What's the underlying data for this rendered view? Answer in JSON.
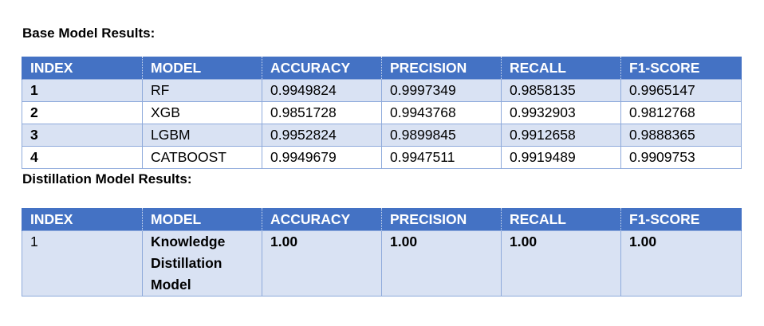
{
  "base": {
    "heading": "Base Model Results:",
    "columns": [
      "INDEX",
      "MODEL",
      "ACCURACY",
      "PRECISION",
      "RECALL",
      "F1-SCORE"
    ],
    "rows": [
      {
        "index": "1",
        "model": "RF",
        "accuracy": "0.9949824",
        "precision": "0.9997349",
        "recall": "0.9858135",
        "f1": "0.9965147"
      },
      {
        "index": "2",
        "model": "XGB",
        "accuracy": "0.9851728",
        "precision": "0.9943768",
        "recall": "0.9932903",
        "f1": "0.9812768"
      },
      {
        "index": "3",
        "model": "LGBM",
        "accuracy": "0.9952824",
        "precision": "0.9899845",
        "recall": "0.9912658",
        "f1": "0.9888365"
      },
      {
        "index": "4",
        "model": "CATBOOST",
        "accuracy": "0.9949679",
        "precision": "0.9947511",
        "recall": "0.9919489",
        "f1": "0.9909753"
      }
    ]
  },
  "distillation": {
    "heading": "Distillation Model Results:",
    "columns": [
      "INDEX",
      "MODEL",
      "ACCURACY",
      "PRECISION",
      "RECALL",
      "F1-SCORE"
    ],
    "rows": [
      {
        "index": "1",
        "model_lines": [
          "Knowledge",
          "Distillation",
          "Model"
        ],
        "accuracy": "1.00",
        "precision": "1.00",
        "recall": "1.00",
        "f1": "1.00"
      }
    ]
  },
  "colors": {
    "header_bg": "#4472c4",
    "header_text": "#ffffff",
    "band_bg": "#d9e2f3",
    "border": "#8eaadb"
  }
}
